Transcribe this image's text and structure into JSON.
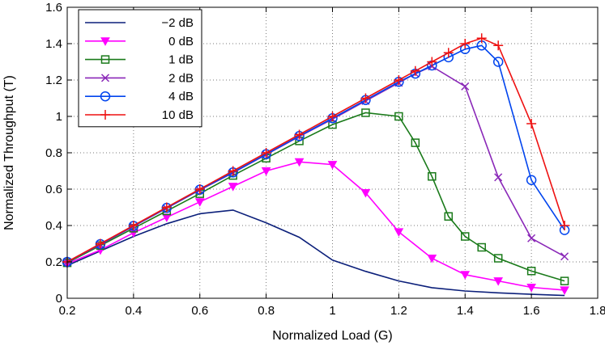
{
  "chart_data": {
    "type": "line",
    "title": "",
    "xlabel": "Normalized Load (G)",
    "ylabel": "Normalized Throughput (T)",
    "xlim": [
      0.2,
      1.8
    ],
    "ylim": [
      0,
      1.6
    ],
    "xticks": [
      0.2,
      0.4,
      0.6,
      0.8,
      1,
      1.2,
      1.4,
      1.6,
      1.8
    ],
    "yticks": [
      0,
      0.2,
      0.4,
      0.6,
      0.8,
      1,
      1.2,
      1.4,
      1.6
    ],
    "grid": true,
    "legend_position": "top-left",
    "series": [
      {
        "name": "−2 dB",
        "color": "#0b1f7a",
        "marker": "none",
        "x": [
          0.2,
          0.3,
          0.4,
          0.5,
          0.6,
          0.7,
          0.8,
          0.9,
          1.0,
          1.1,
          1.2,
          1.3,
          1.4,
          1.5,
          1.6,
          1.7
        ],
        "y": [
          0.18,
          0.26,
          0.34,
          0.41,
          0.465,
          0.485,
          0.415,
          0.335,
          0.21,
          0.148,
          0.095,
          0.058,
          0.04,
          0.03,
          0.022,
          0.015
        ]
      },
      {
        "name": "0 dB",
        "color": "#ff00ff",
        "marker": "triangle-down",
        "x": [
          0.2,
          0.3,
          0.4,
          0.5,
          0.6,
          0.7,
          0.8,
          0.9,
          1.0,
          1.1,
          1.2,
          1.3,
          1.4,
          1.5,
          1.6,
          1.7
        ],
        "y": [
          0.19,
          0.265,
          0.36,
          0.445,
          0.53,
          0.615,
          0.7,
          0.75,
          0.735,
          0.58,
          0.365,
          0.22,
          0.13,
          0.095,
          0.06,
          0.045
        ]
      },
      {
        "name": "1 dB",
        "color": "#1a7a1a",
        "marker": "square",
        "x": [
          0.2,
          0.3,
          0.4,
          0.5,
          0.6,
          0.7,
          0.8,
          0.9,
          1.0,
          1.1,
          1.2,
          1.25,
          1.3,
          1.35,
          1.4,
          1.45,
          1.5,
          1.6,
          1.7
        ],
        "y": [
          0.195,
          0.29,
          0.385,
          0.48,
          0.575,
          0.675,
          0.77,
          0.865,
          0.955,
          1.02,
          1.0,
          0.855,
          0.67,
          0.45,
          0.34,
          0.28,
          0.22,
          0.15,
          0.095
        ]
      },
      {
        "name": "2 dB",
        "color": "#8a28b8",
        "marker": "x",
        "x": [
          0.2,
          0.3,
          0.4,
          0.5,
          0.6,
          0.7,
          0.8,
          0.9,
          1.0,
          1.1,
          1.2,
          1.25,
          1.3,
          1.4,
          1.5,
          1.6,
          1.7
        ],
        "y": [
          0.2,
          0.295,
          0.395,
          0.495,
          0.595,
          0.69,
          0.79,
          0.89,
          0.985,
          1.085,
          1.185,
          1.235,
          1.275,
          1.165,
          0.665,
          0.33,
          0.23
        ]
      },
      {
        "name": "4 dB",
        "color": "#0044ee",
        "marker": "circle",
        "x": [
          0.2,
          0.3,
          0.4,
          0.5,
          0.6,
          0.7,
          0.8,
          0.9,
          1.0,
          1.1,
          1.2,
          1.25,
          1.3,
          1.35,
          1.4,
          1.45,
          1.5,
          1.6,
          1.7
        ],
        "y": [
          0.2,
          0.298,
          0.398,
          0.497,
          0.597,
          0.692,
          0.792,
          0.892,
          0.99,
          1.09,
          1.19,
          1.235,
          1.28,
          1.325,
          1.37,
          1.39,
          1.3,
          0.65,
          0.375
        ]
      },
      {
        "name": "10 dB",
        "color": "#ee1111",
        "marker": "plus",
        "x": [
          0.2,
          0.3,
          0.4,
          0.5,
          0.6,
          0.7,
          0.8,
          0.9,
          1.0,
          1.1,
          1.2,
          1.25,
          1.3,
          1.35,
          1.4,
          1.45,
          1.5,
          1.6,
          1.7
        ],
        "y": [
          0.2,
          0.3,
          0.4,
          0.5,
          0.6,
          0.7,
          0.8,
          0.9,
          1.0,
          1.1,
          1.2,
          1.25,
          1.3,
          1.35,
          1.4,
          1.43,
          1.39,
          0.96,
          0.4
        ]
      }
    ]
  }
}
